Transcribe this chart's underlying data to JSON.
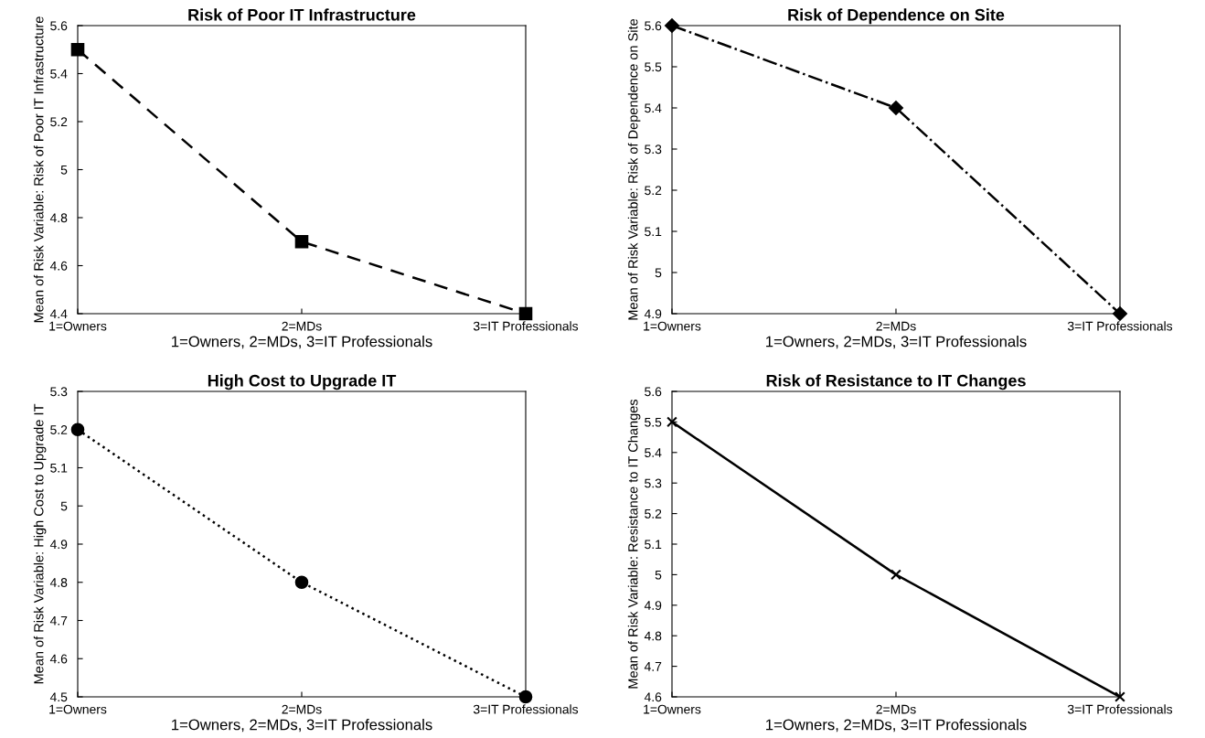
{
  "chart_data": [
    {
      "type": "line",
      "title": "Risk of Poor IT Infrastructure",
      "xlabel": "1=Owners, 2=MDs, 3=IT Professionals",
      "ylabel": "Mean of Risk Variable: Risk of Poor IT Infrastructure",
      "categories": [
        "1=Owners",
        "2=MDs",
        "3=IT Professionals"
      ],
      "series": [
        {
          "color": "#000000",
          "values": [
            5.5,
            4.7,
            4.4
          ]
        }
      ],
      "ylim": [
        4.4,
        5.6
      ],
      "yticks": [
        4.4,
        4.6,
        4.8,
        5,
        5.2,
        5.4,
        5.6
      ],
      "marker": "square",
      "line_style": "dashed",
      "grid": false
    },
    {
      "type": "line",
      "title": "Risk of Dependence on Site",
      "xlabel": "1=Owners, 2=MDs, 3=IT Professionals",
      "ylabel": "Mean of Risk Variable: Risk of Dependence on Site",
      "categories": [
        "1=Owners",
        "2=MDs",
        "3=IT Professionals"
      ],
      "series": [
        {
          "color": "#000000",
          "values": [
            5.6,
            5.4,
            4.9
          ]
        }
      ],
      "ylim": [
        4.9,
        5.6
      ],
      "yticks": [
        4.9,
        5,
        5.1,
        5.2,
        5.3,
        5.4,
        5.5,
        5.6
      ],
      "marker": "diamond",
      "line_style": "dashdot",
      "grid": false
    },
    {
      "type": "line",
      "title": "High Cost to Upgrade IT",
      "xlabel": "1=Owners, 2=MDs, 3=IT Professionals",
      "ylabel": "Mean of Risk Variable: High Cost to Upgrade IT",
      "categories": [
        "1=Owners",
        "2=MDs",
        "3=IT Professionals"
      ],
      "series": [
        {
          "color": "#000000",
          "values": [
            5.2,
            4.8,
            4.5
          ]
        }
      ],
      "ylim": [
        4.5,
        5.3
      ],
      "yticks": [
        4.5,
        4.6,
        4.7,
        4.8,
        4.9,
        5,
        5.1,
        5.2,
        5.3
      ],
      "marker": "circle",
      "line_style": "dotted",
      "grid": false
    },
    {
      "type": "line",
      "title": "Risk of Resistance to IT Changes",
      "xlabel": "1=Owners, 2=MDs, 3=IT Professionals",
      "ylabel": "Mean of Risk Variable: Resistance to IT Changes",
      "categories": [
        "1=Owners",
        "2=MDs",
        "3=IT Professionals"
      ],
      "series": [
        {
          "color": "#000000",
          "values": [
            5.5,
            5.0,
            4.6
          ]
        }
      ],
      "ylim": [
        4.6,
        5.6
      ],
      "yticks": [
        4.6,
        4.7,
        4.8,
        4.9,
        5,
        5.1,
        5.2,
        5.3,
        5.4,
        5.5,
        5.6
      ],
      "marker": "cross",
      "line_style": "solid",
      "grid": false
    }
  ]
}
